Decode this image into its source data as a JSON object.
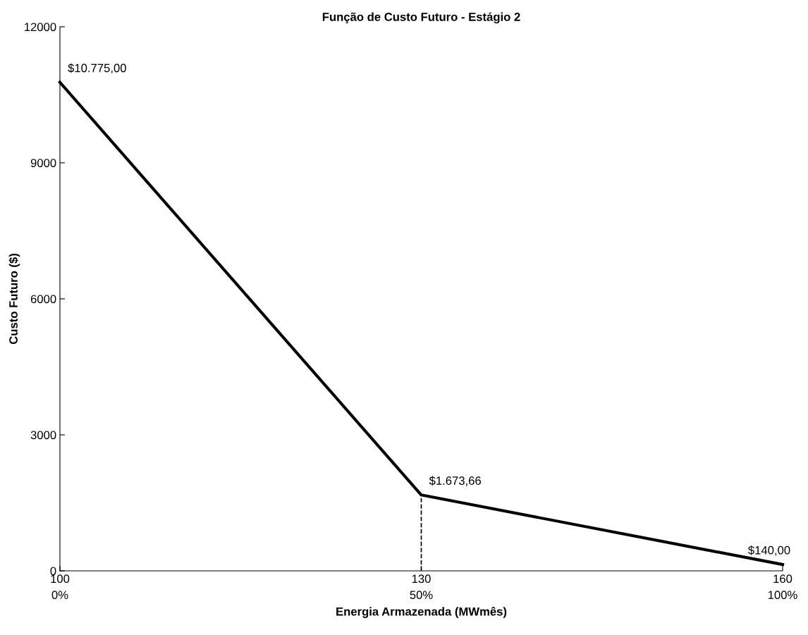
{
  "chart_data": {
    "type": "line",
    "title": "Função de Custo Futuro - Estágio 2",
    "xlabel": "Energia Armazenada (MWmês)",
    "ylabel": "Custo Futuro ($)",
    "series": [
      {
        "x": [
          100,
          130,
          160
        ],
        "values": [
          10775,
          1673.66,
          140
        ],
        "color": "#000000",
        "value_labels": [
          "$10.775,00",
          "$1.673,66",
          "$140,00"
        ]
      },
      {
        "x": [
          130,
          130
        ],
        "values": [
          0,
          1673.66
        ],
        "color": "#000000",
        "line_style": "dashed"
      }
    ],
    "xlim": [
      100,
      160
    ],
    "xticks": [
      100,
      130,
      160
    ],
    "x2lim": [
      0,
      100
    ],
    "x2ticks": [
      {
        "value": 0,
        "label": "0%"
      },
      {
        "value": 50,
        "label": "50%"
      },
      {
        "value": 100,
        "label": "100%"
      }
    ],
    "ylim": [
      0,
      12000
    ],
    "yticks": [
      0,
      3000,
      6000,
      9000,
      12000
    ],
    "grid": false,
    "legend": false,
    "marker": "none",
    "line_style": "solid"
  }
}
